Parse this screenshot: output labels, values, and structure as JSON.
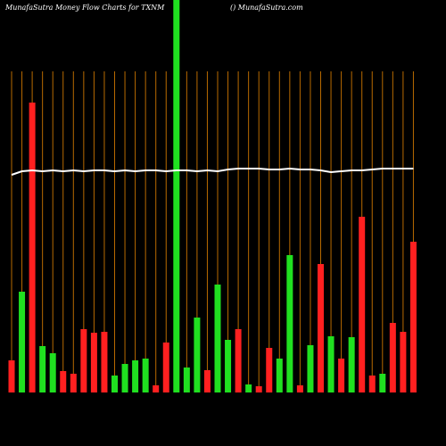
{
  "chart_data": {
    "type": "bar",
    "title": "MunafaSutra  Money Flow  Charts for TXNM",
    "subtitle": "() MunafaSutra.com",
    "values": [
      36,
      113,
      325,
      52,
      44,
      24,
      21,
      71,
      67,
      68,
      19,
      32,
      36,
      38,
      8,
      56,
      460,
      28,
      84,
      25,
      121,
      59,
      71,
      9,
      7,
      50,
      38,
      154,
      8,
      53,
      144,
      63,
      38,
      62,
      197,
      19,
      21,
      78,
      68,
      169
    ],
    "colors": [
      "#ff2020",
      "#20e020",
      "#ff2020",
      "#20e020",
      "#20e020",
      "#ff2020",
      "#ff2020",
      "#ff2020",
      "#ff2020",
      "#ff2020",
      "#20e020",
      "#20e020",
      "#20e020",
      "#20e020",
      "#ff2020",
      "#ff2020",
      "#20e020",
      "#20e020",
      "#20e020",
      "#ff2020",
      "#20e020",
      "#20e020",
      "#ff2020",
      "#20e020",
      "#ff2020",
      "#ff2020",
      "#20e020",
      "#20e020",
      "#ff2020",
      "#20e020",
      "#ff2020",
      "#20e020",
      "#ff2020",
      "#20e020",
      "#ff2020",
      "#ff2020",
      "#20e020",
      "#ff2020",
      "#ff2020",
      "#ff2020"
    ],
    "line": {
      "color": "#ffffff",
      "values": [
        244,
        248,
        249,
        248,
        249,
        248,
        249,
        248,
        249,
        249,
        248,
        249,
        248,
        249,
        249,
        248,
        249,
        249,
        248,
        249,
        248,
        250,
        251,
        251,
        251,
        250,
        250,
        251,
        250,
        250,
        249,
        247,
        248,
        249,
        249,
        250,
        251,
        251,
        251,
        251
      ]
    },
    "ylim": [
      0,
      440
    ],
    "grid_color": "#b86a00"
  }
}
